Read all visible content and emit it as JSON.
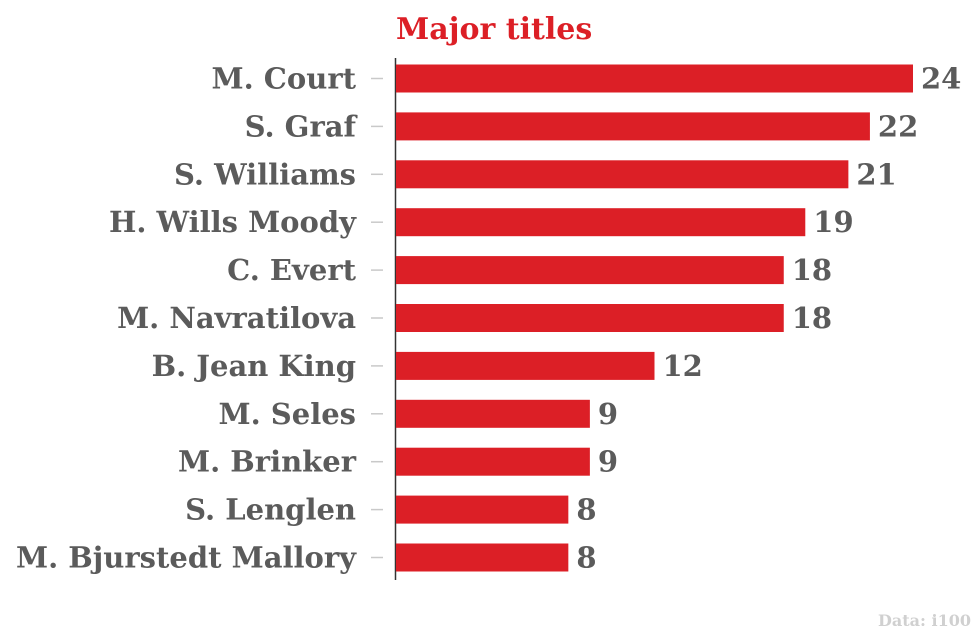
{
  "colors": {
    "bar": "#dc1f26",
    "title": "#dc1f26",
    "label": "#5b5b5b",
    "axis": "#333333",
    "tick": "#c9c9c9",
    "source": "#d0d0d0"
  },
  "chart_data": {
    "type": "bar",
    "orientation": "horizontal",
    "title": "Major titles",
    "categories": [
      "M. Court",
      "S. Graf",
      "S. Williams",
      "H. Wills Moody",
      "C. Evert",
      "M. Navratilova",
      "B. Jean King",
      "M. Seles",
      "M. Brinker",
      "S. Lenglen",
      "M. Bjurstedt Mallory"
    ],
    "values": [
      24,
      22,
      21,
      19,
      18,
      18,
      12,
      9,
      9,
      8,
      8
    ],
    "value_labels": [
      "24",
      "22",
      "21",
      "19",
      "18",
      "18",
      "12",
      "9",
      "9",
      "8",
      "8"
    ],
    "xlim": [
      0,
      24
    ],
    "grid": false,
    "legend": "none",
    "source": "Data: i100"
  }
}
